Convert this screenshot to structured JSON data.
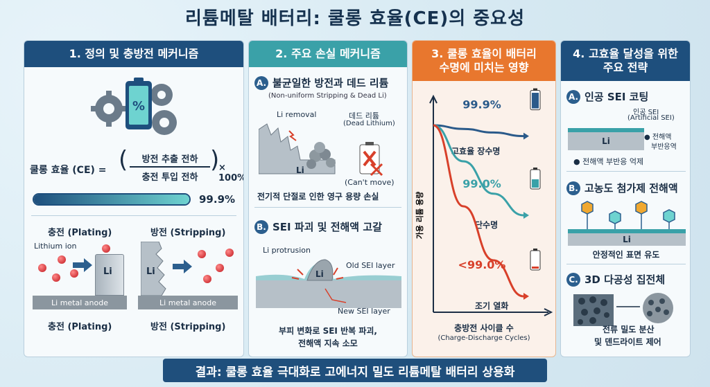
{
  "title": "리튬메탈 배터리: 쿨롱 효율(CE)의 중요성",
  "p1": {
    "header": "1. 정의 및 충방전 메커니즘",
    "battery_symbol": "%",
    "formula_lhs": "쿨롱 효율 (CE) =",
    "numerator": "방전 추출 전하",
    "denominator": "충전 투입 전하",
    "times": "× 100%",
    "bar_value_label": "99.9%",
    "bar_fraction": 0.999,
    "plating_top": "충전 (Plating)",
    "stripping_top": "방전 (Stripping)",
    "lithium_ion": "Lithium ion",
    "li_left": "Li",
    "li_right": "Li",
    "anode_left": "Li metal anode",
    "anode_right": "Li metal anode",
    "plating_bottom": "충전 (Plating)",
    "stripping_bottom": "방전 (Stripping)"
  },
  "p2": {
    "header": "2. 주요 손실 메커니즘",
    "a_badge": "A.",
    "a_title": "불균일한 방전과 데드 리튬",
    "a_sub": "(Non-uniform Stripping & Dead Li)",
    "li_removal": "Li removal",
    "dead_li": "데드 리튬",
    "dead_li_en": "(Dead Lithium)",
    "li": "Li",
    "cant_move": "(Can't move)",
    "a_caption": "전기적 단절로 인한 영구 용량 손실",
    "b_badge": "B.",
    "b_title": "SEI 파괴 및 전해액 고갈",
    "li_protrusion": "Li protrusion",
    "li_b": "Li",
    "old_sei": "Old SEI layer",
    "new_sei": "New SEI layer",
    "b_caption_1": "부피 변화로 SEI 반복 파괴,",
    "b_caption_2": "전해액 지속 소모"
  },
  "p3": {
    "header_1": "3. 쿨롱 효율이 배터리",
    "header_2": "수명에 미치는 영향",
    "ylabel": "가용 리튬 용량",
    "xlabel": "충방전 사이클 수",
    "xlabel_en": "(Charge-Discharge Cycles)",
    "colors": {
      "high": "#2a5a8a",
      "mid": "#3aa1a8",
      "low": "#d8402a"
    }
  },
  "chart_data": {
    "type": "line",
    "xlabel": "충방전 사이클 수",
    "ylabel": "가용 리튬 용량",
    "series": [
      {
        "name": "99.9%",
        "label": "고효율 장수명",
        "values": [
          1.0,
          0.98,
          0.96,
          0.94
        ]
      },
      {
        "name": "99.0%",
        "label": "단수명",
        "values": [
          1.0,
          0.8,
          0.62,
          0.5
        ]
      },
      {
        "name": "<99.0%",
        "label": "조기 열화",
        "values": [
          1.0,
          0.55,
          0.25,
          0.05
        ]
      }
    ]
  },
  "p4": {
    "header_1": "4. 고효율 달성을 위한",
    "header_2": "주요 전략",
    "a_badge": "A.",
    "a_title": "인공 SEI 코팅",
    "sei_label_1": "인공 SEI",
    "sei_label_2": "(Artificial SEI)",
    "li_a": "Li",
    "bullet1_1": "전해액",
    "bullet1_2": "부반응역",
    "bullet2": "전해액 부반응 억제",
    "b_badge": "B.",
    "b_title": "고농도 첨가제 전해액",
    "li_b": "Li",
    "b_caption": "안정적인 표면 유도",
    "c_badge": "C.",
    "c_title": "3D 다공성 집전체",
    "c_caption_1": "전류 밀도 분산",
    "c_caption_2": "및 덴드라이트 제어"
  },
  "footer": "결과: 쿨롱 효율 극대화로 고에너지 밀도 리튬메탈 배터리 상용화"
}
